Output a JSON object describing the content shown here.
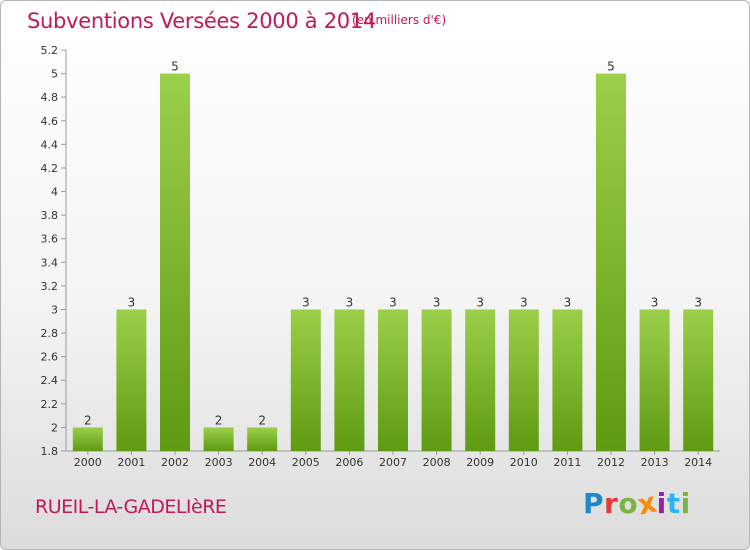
{
  "header": {
    "title": "Subventions Versées 2000 à 2014",
    "unit_note": "(en milliers d'€)"
  },
  "footer": {
    "commune": "RUEIL-LA-GADELIèRE",
    "logo_letters": [
      {
        "ch": "P",
        "color": "#1e88c8"
      },
      {
        "ch": "r",
        "color": "#e53935"
      },
      {
        "ch": "o",
        "color": "#7cb342"
      },
      {
        "ch": "x",
        "color": "#fb8c00"
      },
      {
        "ch": "i",
        "color": "#8e24aa"
      },
      {
        "ch": "t",
        "color": "#29b6f6"
      },
      {
        "ch": "i",
        "color": "#7cb342"
      }
    ]
  },
  "chart_data": {
    "type": "bar",
    "title": "Subventions Versées 2000 à 2014",
    "subtitle": "(en milliers d'€)",
    "xlabel": "",
    "ylabel": "",
    "categories": [
      "2000",
      "2001",
      "2002",
      "2003",
      "2004",
      "2005",
      "2006",
      "2007",
      "2008",
      "2009",
      "2010",
      "2011",
      "2012",
      "2013",
      "2014"
    ],
    "values": [
      2,
      3,
      5,
      2,
      2,
      3,
      3,
      3,
      3,
      3,
      3,
      3,
      5,
      3,
      3
    ],
    "value_labels": [
      "2",
      "3",
      "5",
      "2",
      "2",
      "3",
      "3",
      "3",
      "3",
      "3",
      "3",
      "3",
      "5",
      "3",
      "3"
    ],
    "ylim": [
      1.8,
      5.2
    ],
    "yticks": [
      1.8,
      2,
      2.2,
      2.4,
      2.6,
      2.8,
      3,
      3.2,
      3.4,
      3.6,
      3.8,
      4,
      4.2,
      4.4,
      4.6,
      4.8,
      5,
      5.2
    ],
    "ytick_labels": [
      "1.8",
      "2",
      "2.2",
      "2.4",
      "2.6",
      "2.8",
      "3",
      "3.2",
      "3.4",
      "3.6",
      "3.8",
      "4",
      "4.2",
      "4.4",
      "4.6",
      "4.8",
      "5",
      "5.2"
    ],
    "grid": false,
    "legend": "none",
    "bar_color_top": "#9ccf4a",
    "bar_color_bottom": "#5e9a12"
  }
}
